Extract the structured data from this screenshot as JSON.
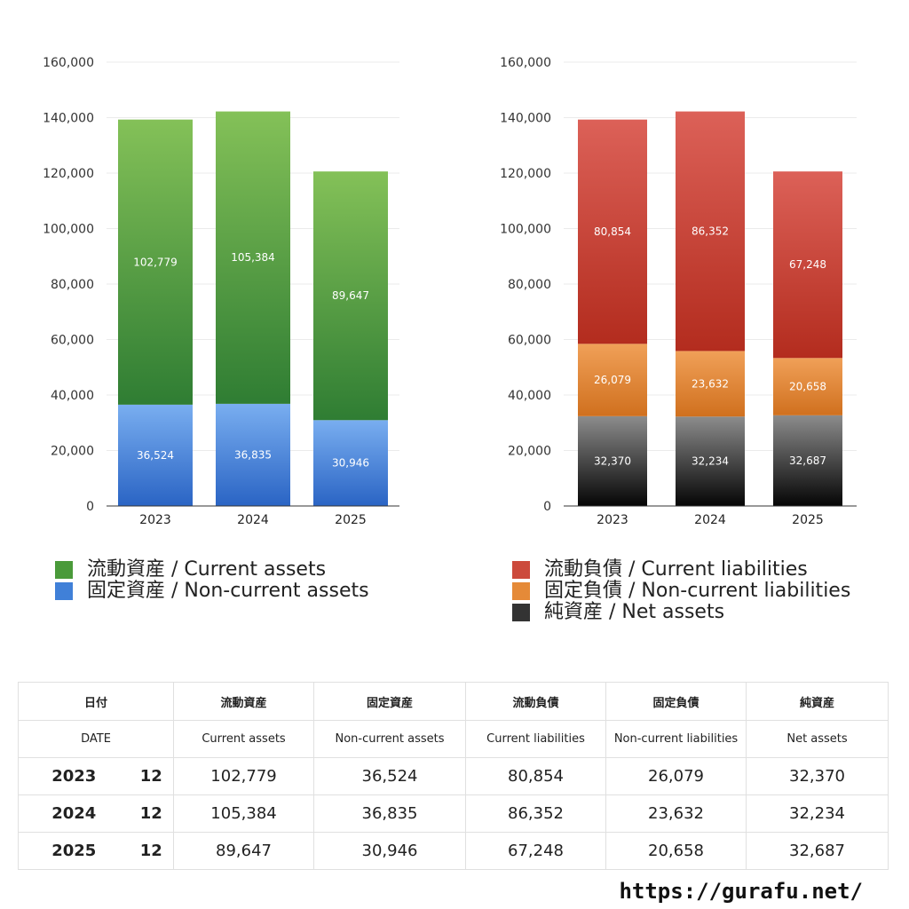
{
  "chart_data": [
    {
      "type": "bar",
      "stacked": true,
      "categories": [
        "2023",
        "2024",
        "2025"
      ],
      "ylim": [
        0,
        160000
      ],
      "yticks": [
        0,
        20000,
        40000,
        60000,
        80000,
        100000,
        120000,
        140000,
        160000
      ],
      "series": [
        {
          "name": "固定資産 / Non-current assets",
          "values": [
            36524,
            36835,
            30946
          ],
          "color_top": "#79aef0",
          "color_bottom": "#2a64c4"
        },
        {
          "name": "流動資産 / Current assets",
          "values": [
            102779,
            105384,
            89647
          ],
          "color_top": "#84c158",
          "color_bottom": "#2f7d33"
        }
      ]
    },
    {
      "type": "bar",
      "stacked": true,
      "categories": [
        "2023",
        "2024",
        "2025"
      ],
      "ylim": [
        0,
        160000
      ],
      "yticks": [
        0,
        20000,
        40000,
        60000,
        80000,
        100000,
        120000,
        140000,
        160000
      ],
      "series": [
        {
          "name": "純資産 / Net assets",
          "values": [
            32370,
            32234,
            32687
          ],
          "color_top": "#8c8c8c",
          "color_bottom": "#050505"
        },
        {
          "name": "固定負債 / Non-current liabilities",
          "values": [
            26079,
            23632,
            20658
          ],
          "color_top": "#f0a058",
          "color_bottom": "#d0701e"
        },
        {
          "name": "流動負債 / Current liabilities",
          "values": [
            80854,
            86352,
            67248
          ],
          "color_top": "#dc6158",
          "color_bottom": "#b32c1e"
        }
      ]
    }
  ],
  "legend_left": [
    {
      "label": "流動資産 / Current assets",
      "color": "#4a9a3a"
    },
    {
      "label": "固定資産 / Non-current assets",
      "color": "#4080d8"
    }
  ],
  "legend_right": [
    {
      "label": "流動負債 / Current liabilities",
      "color": "#cc4a3c"
    },
    {
      "label": "固定負債 / Non-current liabilities",
      "color": "#e58a38"
    },
    {
      "label": "純資産 / Net assets",
      "color": "#333333"
    }
  ],
  "table": {
    "header_jp": [
      "日付",
      "流動資産",
      "固定資産",
      "流動負債",
      "固定負債",
      "純資産"
    ],
    "header_en": [
      "DATE",
      "Current assets",
      "Non-current assets",
      "Current liabilities",
      "Non-current liabilities",
      "Net assets"
    ],
    "rows": [
      {
        "year": "2023",
        "month": "12",
        "values": [
          "102,779",
          "36,524",
          "80,854",
          "26,079",
          "32,370"
        ]
      },
      {
        "year": "2024",
        "month": "12",
        "values": [
          "105,384",
          "36,835",
          "86,352",
          "23,632",
          "32,234"
        ]
      },
      {
        "year": "2025",
        "month": "12",
        "values": [
          "89,647",
          "30,946",
          "67,248",
          "20,658",
          "32,687"
        ]
      }
    ]
  },
  "footer": "https://gurafu.net/"
}
